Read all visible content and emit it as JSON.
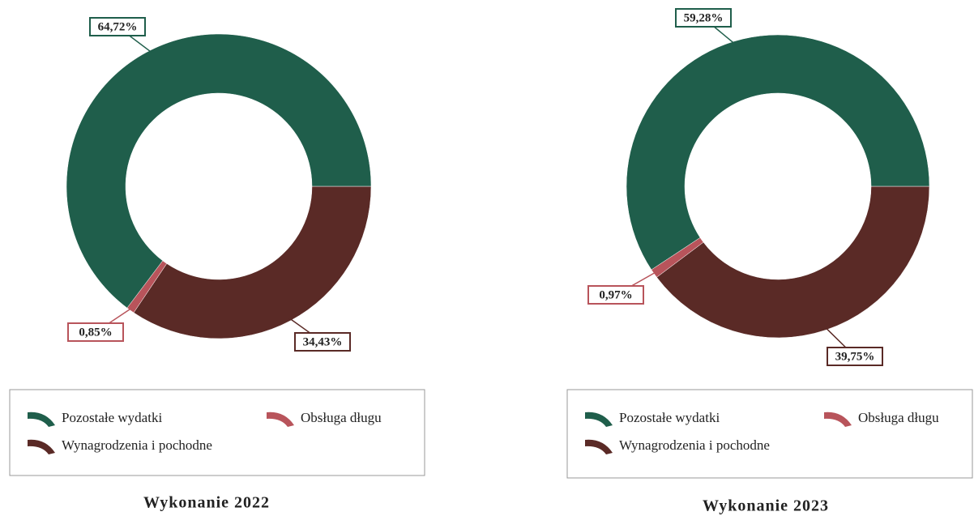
{
  "chart_data": [
    {
      "type": "pie",
      "title": "Wykonanie 2022",
      "categories": [
        "Wynagrodzenia i pochodne",
        "Obsługa długu",
        "Pozostałe wydatki"
      ],
      "values": [
        34.43,
        0.85,
        64.72
      ],
      "value_labels": [
        "34,43%",
        "0,85%",
        "64,72%"
      ],
      "colors": [
        "#5a2a26",
        "#b8545b",
        "#1f5e4b"
      ]
    },
    {
      "type": "pie",
      "title": "Wykonanie 2023",
      "categories": [
        "Wynagrodzenia i pochodne",
        "Obsługa długu",
        "Pozostałe wydatki"
      ],
      "values": [
        39.75,
        0.97,
        59.28
      ],
      "value_labels": [
        "39,75%",
        "0,97%",
        "59,28%"
      ],
      "colors": [
        "#5a2a26",
        "#b8545b",
        "#1f5e4b"
      ]
    }
  ]
}
